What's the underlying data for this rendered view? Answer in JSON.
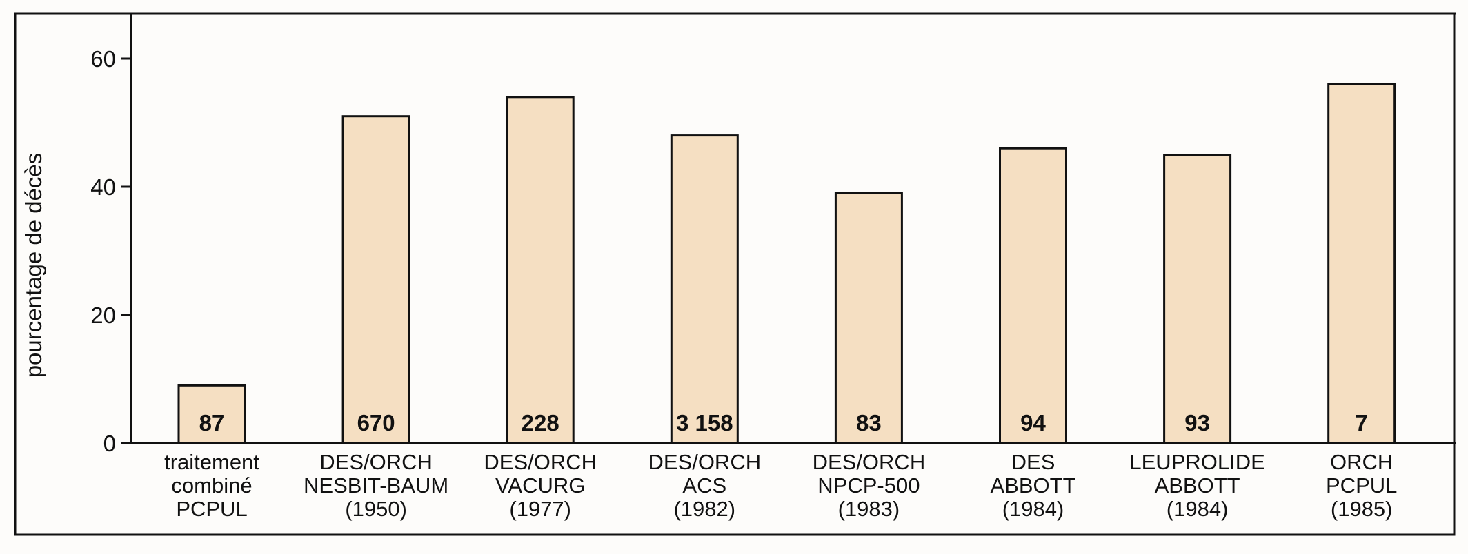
{
  "chart_data": {
    "type": "bar",
    "ylabel": "pourcentage de décès",
    "ylim": [
      0,
      66
    ],
    "yticks": [
      0,
      20,
      40,
      60
    ],
    "categories": [
      [
        "traitement",
        "combiné",
        "PCPUL"
      ],
      [
        "DES/ORCH",
        "NESBIT-BAUM",
        "(1950)"
      ],
      [
        "DES/ORCH",
        "VACURG",
        "(1977)"
      ],
      [
        "DES/ORCH",
        "ACS",
        "(1982)"
      ],
      [
        "DES/ORCH",
        "NPCP-500",
        "(1983)"
      ],
      [
        "DES",
        "ABBOTT",
        "(1984)"
      ],
      [
        "LEUPROLIDE",
        "ABBOTT",
        "(1984)"
      ],
      [
        "ORCH",
        "PCPUL",
        "(1985)"
      ]
    ],
    "values": [
      9,
      51,
      54,
      48,
      39,
      46,
      45,
      56
    ],
    "bar_labels": [
      "87",
      "670",
      "228",
      "3 158",
      "83",
      "94",
      "93",
      "7"
    ],
    "bar_fill": "#f5dfc2",
    "bar_stroke": "#111111",
    "grid": false,
    "legend": "none"
  }
}
